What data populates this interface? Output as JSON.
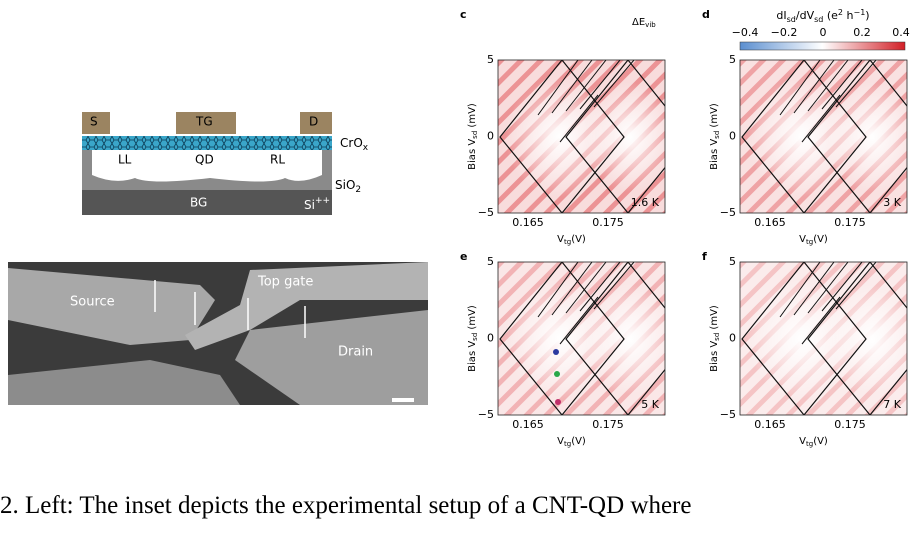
{
  "schematic": {
    "s": "S",
    "tg": "TG",
    "d": "D",
    "crox": "CrO",
    "crox_sub": "x",
    "ll": "LL",
    "qd": "QD",
    "rl": "RL",
    "sio2": "SiO",
    "sio2_sub": "2",
    "bg": "BG",
    "si": "Si",
    "si_sup": "++"
  },
  "sem": {
    "source": "Source",
    "top_gate": "Top gate",
    "drain": "Drain"
  },
  "colorbar": {
    "label": [
      "dI",
      "sd",
      "/dV",
      "sd",
      " (e",
      "2",
      " h",
      "−1",
      ")"
    ],
    "ticks": [
      "−0.4",
      "−0.2",
      "0",
      "0.2",
      "0.4"
    ]
  },
  "annotation": {
    "text": "ΔE",
    "sub": "vib"
  },
  "axes": {
    "y_label": "Bias V",
    "y_sub": "sd",
    "y_unit": " (mV)",
    "x_label": "V",
    "x_sub": "tg",
    "x_unit": "(V)",
    "yticks": [
      "5",
      "0",
      "−5"
    ],
    "xticks": [
      "0.165",
      "0.175"
    ]
  },
  "panels": [
    {
      "letter": "c",
      "temperature": "1.6 K"
    },
    {
      "letter": "d",
      "temperature": "3 K"
    },
    {
      "letter": "e",
      "temperature": "5 K"
    },
    {
      "letter": "f",
      "temperature": "7 K"
    }
  ],
  "caption": "2. Left: The inset depicts the experimental setup of a CNT-QD where"
}
